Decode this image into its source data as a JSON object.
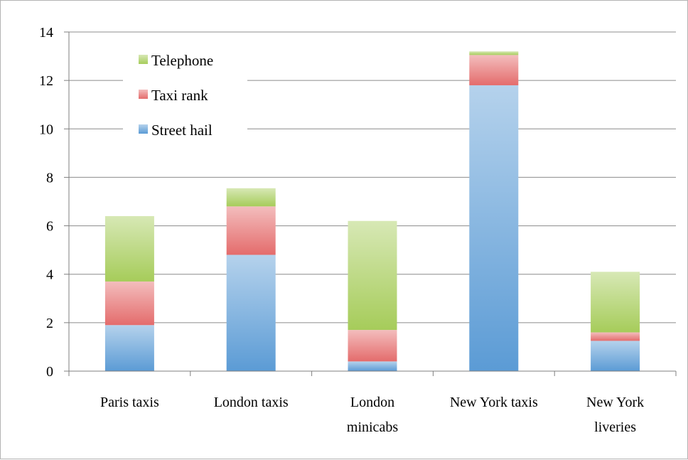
{
  "chart_data": {
    "type": "bar",
    "stacked": true,
    "title": "",
    "xlabel": "",
    "ylabel": "",
    "categories": [
      [
        "Paris taxis"
      ],
      [
        "London taxis"
      ],
      [
        "London",
        "minicabs"
      ],
      [
        "New York taxis"
      ],
      [
        "New York",
        "liveries"
      ]
    ],
    "series": [
      {
        "name": "Street hail",
        "color": "#5b9bd5",
        "values": [
          1.9,
          4.8,
          0.4,
          11.8,
          1.25
        ]
      },
      {
        "name": "Taxi rank",
        "color": "#e46c6c",
        "values": [
          1.8,
          2.0,
          1.3,
          1.25,
          0.35
        ]
      },
      {
        "name": "Telephone",
        "color": "#a6cc5a",
        "values": [
          2.7,
          0.75,
          4.5,
          0.15,
          2.5
        ]
      }
    ],
    "ylim": [
      0,
      14
    ],
    "yticks": [
      0,
      2,
      4,
      6,
      8,
      10,
      12,
      14
    ],
    "grid": true,
    "legend": {
      "position": "top-left",
      "order": [
        "Telephone",
        "Taxi rank",
        "Street hail"
      ]
    }
  }
}
